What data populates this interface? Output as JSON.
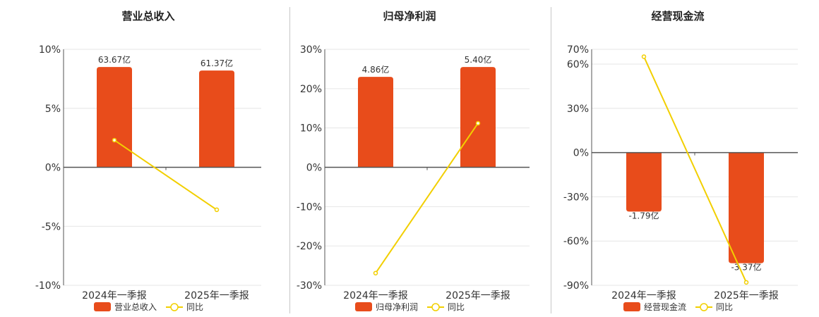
{
  "colors": {
    "bar": "#e84c1b",
    "line": "#f2cf00",
    "grid": "#e6e6e6",
    "axis": "#555555"
  },
  "chart_data": [
    {
      "type": "bar",
      "title": "营业总收入",
      "categories": [
        "2024年一季报",
        "2025年一季报"
      ],
      "series": [
        {
          "name": "营业总收入",
          "type": "bar",
          "values": [
            8.5,
            8.2
          ],
          "labels": [
            "63.67亿",
            "61.37亿"
          ]
        },
        {
          "name": "同比",
          "type": "line",
          "values": [
            2.3,
            -3.6
          ]
        }
      ],
      "yticks": [
        "10%",
        "5%",
        "0%",
        "-5%",
        "-10%"
      ],
      "ylim": [
        -10,
        10
      ],
      "legend": "bottom"
    },
    {
      "type": "bar",
      "title": "归母净利润",
      "categories": [
        "2024年一季报",
        "2025年一季报"
      ],
      "series": [
        {
          "name": "归母净利润",
          "type": "bar",
          "values": [
            23,
            25.5
          ],
          "labels": [
            "4.86亿",
            "5.40亿"
          ]
        },
        {
          "name": "同比",
          "type": "line",
          "values": [
            -26.9,
            11.2
          ]
        }
      ],
      "yticks": [
        "30%",
        "20%",
        "10%",
        "0%",
        "-10%",
        "-20%",
        "-30%"
      ],
      "ylim": [
        -30,
        30
      ],
      "legend": "bottom"
    },
    {
      "type": "bar",
      "title": "经营现金流",
      "categories": [
        "2024年一季报",
        "2025年一季报"
      ],
      "series": [
        {
          "name": "经营现金流",
          "type": "bar",
          "values": [
            -40,
            -75
          ],
          "labels": [
            "-1.79亿",
            "-3.37亿"
          ]
        },
        {
          "name": "同比",
          "type": "line",
          "values": [
            65,
            -88
          ]
        }
      ],
      "yticks": [
        "70%",
        "60%",
        "30%",
        "0%",
        "-30%",
        "-60%",
        "-90%"
      ],
      "ylim": [
        -90,
        70
      ],
      "legend": "bottom"
    }
  ]
}
